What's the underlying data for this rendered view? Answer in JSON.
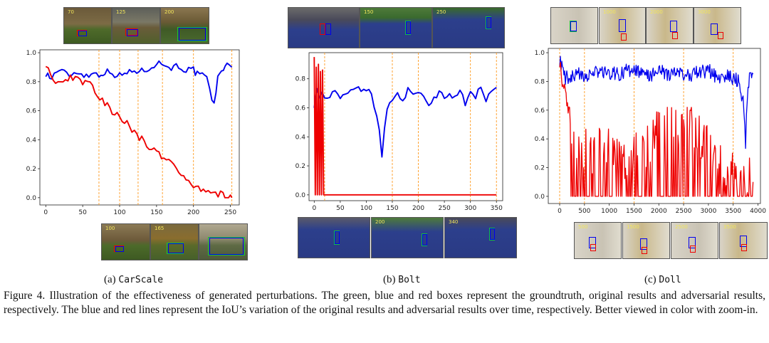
{
  "chart_data": [
    {
      "type": "line",
      "id": "carscale",
      "label": "(a)",
      "name": "CarScale",
      "xlim": [
        -8,
        262
      ],
      "ylim": [
        -0.05,
        1.02
      ],
      "xticks": [
        "0",
        "50",
        "100",
        "150",
        "200",
        "250"
      ],
      "yticks": [
        "0.0",
        "0.2",
        "0.4",
        "0.6",
        "0.8",
        "1.0"
      ],
      "frame_markers": [
        72,
        100,
        125,
        158,
        200,
        252
      ],
      "top_frames": [
        "70",
        "125",
        "200"
      ],
      "bottom_frames": [
        "100",
        "165",
        ""
      ],
      "series": [
        {
          "name": "original",
          "color": "#0000ee",
          "x": [
            0,
            8,
            15,
            25,
            35,
            45,
            55,
            65,
            72,
            80,
            90,
            100,
            110,
            120,
            130,
            140,
            150,
            160,
            170,
            180,
            190,
            200,
            205,
            212,
            218,
            222,
            228,
            233,
            238,
            243,
            248,
            252
          ],
          "y": [
            0.86,
            0.82,
            0.88,
            0.86,
            0.85,
            0.87,
            0.84,
            0.86,
            0.85,
            0.87,
            0.86,
            0.84,
            0.86,
            0.88,
            0.87,
            0.9,
            0.93,
            0.92,
            0.9,
            0.91,
            0.88,
            0.88,
            0.85,
            0.84,
            0.82,
            0.73,
            0.65,
            0.82,
            0.88,
            0.92,
            0.9,
            0.9
          ]
        },
        {
          "name": "adversarial",
          "color": "#ee0000",
          "x": [
            0,
            10,
            20,
            30,
            40,
            50,
            60,
            70,
            80,
            90,
            100,
            110,
            120,
            130,
            140,
            150,
            160,
            170,
            180,
            190,
            200,
            210,
            220,
            230,
            240,
            245,
            250,
            252
          ],
          "y": [
            0.93,
            0.8,
            0.78,
            0.82,
            0.84,
            0.8,
            0.78,
            0.7,
            0.66,
            0.6,
            0.55,
            0.51,
            0.45,
            0.4,
            0.35,
            0.32,
            0.28,
            0.24,
            0.18,
            0.13,
            0.09,
            0.06,
            0.04,
            0.03,
            0.02,
            0.01,
            0.0,
            0.0
          ]
        }
      ]
    },
    {
      "type": "line",
      "id": "bolt",
      "label": "(b)",
      "name": "Bolt",
      "xlim": [
        -10,
        362
      ],
      "ylim": [
        -0.04,
        0.98
      ],
      "xticks": [
        "0",
        "50",
        "100",
        "150",
        "200",
        "250",
        "300",
        "350"
      ],
      "yticks": [
        "0.0",
        "0.2",
        "0.4",
        "0.6",
        "0.8"
      ],
      "frame_markers": [
        20,
        150,
        200,
        300,
        350
      ],
      "top_frames": [
        "",
        "150",
        "250"
      ],
      "bottom_frames": [
        "",
        "200",
        "340"
      ],
      "series": [
        {
          "name": "original",
          "color": "#0000ee",
          "x": [
            0,
            5,
            10,
            15,
            20,
            30,
            40,
            50,
            60,
            70,
            80,
            90,
            100,
            110,
            115,
            120,
            125,
            130,
            135,
            140,
            150,
            160,
            170,
            180,
            190,
            200,
            210,
            220,
            230,
            240,
            250,
            260,
            270,
            280,
            290,
            300,
            310,
            320,
            330,
            340,
            350
          ],
          "y": [
            0.62,
            0.72,
            0.66,
            0.7,
            0.68,
            0.69,
            0.7,
            0.68,
            0.7,
            0.71,
            0.72,
            0.73,
            0.72,
            0.7,
            0.62,
            0.55,
            0.45,
            0.25,
            0.45,
            0.6,
            0.65,
            0.7,
            0.66,
            0.72,
            0.68,
            0.7,
            0.68,
            0.62,
            0.66,
            0.7,
            0.68,
            0.7,
            0.66,
            0.73,
            0.62,
            0.7,
            0.68,
            0.75,
            0.66,
            0.72,
            0.74
          ]
        },
        {
          "name": "adversarial",
          "color": "#ee0000",
          "x": [
            0,
            2,
            4,
            6,
            8,
            10,
            12,
            14,
            16,
            18,
            20,
            25,
            30,
            100,
            200,
            300,
            350
          ],
          "y": [
            0.95,
            0.0,
            0.88,
            0.0,
            0.9,
            0.0,
            0.85,
            0.0,
            0.86,
            0.0,
            0.0,
            0.0,
            0.0,
            0.0,
            0.0,
            0.0,
            0.0
          ]
        }
      ]
    },
    {
      "type": "line",
      "id": "doll",
      "label": "(c)",
      "name": "Doll",
      "xlim": [
        -230,
        4050
      ],
      "ylim": [
        -0.05,
        1.03
      ],
      "xticks": [
        "0",
        "500",
        "1000",
        "1500",
        "2000",
        "2500",
        "3000",
        "3500",
        "4000"
      ],
      "yticks": [
        "0.0",
        "0.2",
        "0.4",
        "0.6",
        "0.8",
        "1.0"
      ],
      "frame_markers": [
        0,
        500,
        1500,
        2500,
        3500
      ],
      "top_frames": [
        "",
        "1000",
        "2000",
        "3000"
      ],
      "bottom_frames": [
        "500",
        "1500",
        "2500",
        "3500"
      ],
      "series": [
        {
          "name": "original",
          "color": "#0000ee",
          "x": [
            0,
            100,
            200,
            400,
            600,
            800,
            1000,
            1200,
            1400,
            1600,
            1800,
            2000,
            2200,
            2400,
            2600,
            2800,
            3000,
            3200,
            3400,
            3600,
            3700,
            3750,
            3800,
            3900
          ],
          "y": [
            0.95,
            0.83,
            0.82,
            0.85,
            0.84,
            0.87,
            0.86,
            0.85,
            0.88,
            0.86,
            0.84,
            0.87,
            0.85,
            0.86,
            0.84,
            0.86,
            0.88,
            0.82,
            0.84,
            0.8,
            0.65,
            0.38,
            0.8,
            0.85
          ]
        },
        {
          "name": "adversarial",
          "color": "#ee0000",
          "x": [
            0,
            50,
            100,
            200,
            300,
            400,
            600,
            800,
            1000,
            1200,
            1400,
            1600,
            1800,
            2000,
            2200,
            2400,
            2600,
            2800,
            3000,
            3200,
            3400,
            3600,
            3800,
            3900
          ],
          "y": [
            0.95,
            0.8,
            0.75,
            0.55,
            0.45,
            0.38,
            0.32,
            0.3,
            0.35,
            0.3,
            0.28,
            0.3,
            0.4,
            0.45,
            0.5,
            0.52,
            0.55,
            0.45,
            0.3,
            0.2,
            0.15,
            0.12,
            0.1,
            0.1
          ]
        }
      ]
    }
  ],
  "caption": "Figure 4. Illustration of the effectiveness of generated perturbations. The green, blue and red boxes represent the groundtruth, original results and adversarial results, respectively. The blue and red lines represent the IoU’s variation of the original results and adversarial results over time, respectively. Better viewed in color with zoom-in.",
  "colors": {
    "original": "#0000ee",
    "adversarial": "#ee0000",
    "groundtruth": "#16c23a",
    "marker": "#ff9a1f"
  }
}
